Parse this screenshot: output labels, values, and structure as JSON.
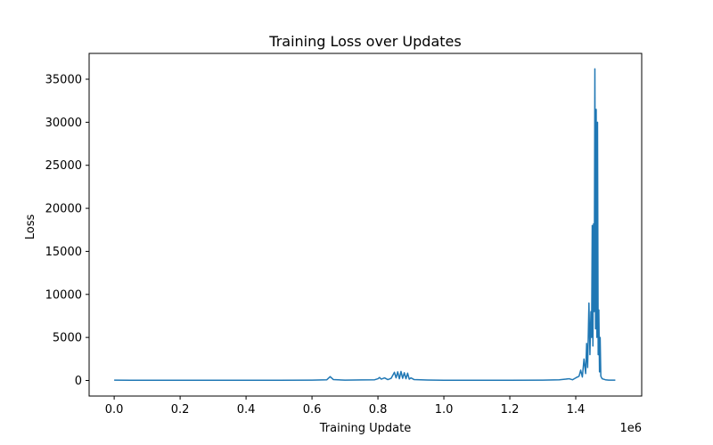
{
  "chart_data": {
    "type": "line",
    "title": "Training Loss over Updates",
    "xlabel": "Training Update",
    "ylabel": "Loss",
    "x_offset_label": "1e6",
    "xlim": [
      -0.076,
      1.6
    ],
    "ylim": [
      -1810,
      38000
    ],
    "xticks": [
      0.0,
      0.2,
      0.4,
      0.6,
      0.8,
      1.0,
      1.2,
      1.4
    ],
    "xtick_labels": [
      "0.0",
      "0.2",
      "0.4",
      "0.6",
      "0.8",
      "1.0",
      "1.2",
      "1.4"
    ],
    "yticks": [
      0,
      5000,
      10000,
      15000,
      20000,
      25000,
      30000,
      35000
    ],
    "ytick_labels": [
      "0",
      "5000",
      "10000",
      "15000",
      "20000",
      "25000",
      "30000",
      "35000"
    ],
    "grid": false,
    "series": [
      {
        "color": "#1f77b4",
        "x": [
          0.0,
          0.05,
          0.1,
          0.2,
          0.3,
          0.4,
          0.5,
          0.6,
          0.645,
          0.655,
          0.665,
          0.7,
          0.75,
          0.79,
          0.8,
          0.805,
          0.81,
          0.82,
          0.83,
          0.84,
          0.85,
          0.855,
          0.86,
          0.865,
          0.87,
          0.875,
          0.88,
          0.885,
          0.89,
          0.895,
          0.9,
          0.91,
          0.95,
          1.0,
          1.1,
          1.2,
          1.3,
          1.35,
          1.38,
          1.39,
          1.4,
          1.41,
          1.415,
          1.42,
          1.425,
          1.43,
          1.433,
          1.436,
          1.44,
          1.443,
          1.446,
          1.448,
          1.45,
          1.452,
          1.454,
          1.456,
          1.458,
          1.46,
          1.462,
          1.464,
          1.466,
          1.468,
          1.47,
          1.472,
          1.474,
          1.476,
          1.48,
          1.49,
          1.5,
          1.52
        ],
        "y": [
          40,
          30,
          20,
          30,
          20,
          30,
          20,
          40,
          80,
          450,
          100,
          40,
          60,
          80,
          200,
          350,
          150,
          300,
          100,
          250,
          950,
          300,
          1000,
          200,
          1050,
          250,
          900,
          200,
          850,
          150,
          300,
          100,
          50,
          20,
          20,
          30,
          40,
          80,
          200,
          80,
          300,
          500,
          1200,
          400,
          2500,
          800,
          4300,
          1500,
          9000,
          3000,
          8000,
          5000,
          18000,
          4000,
          18200,
          8000,
          36200,
          6000,
          31500,
          5000,
          30000,
          3000,
          8200,
          1000,
          5000,
          500,
          200,
          80,
          40,
          40
        ]
      }
    ]
  }
}
